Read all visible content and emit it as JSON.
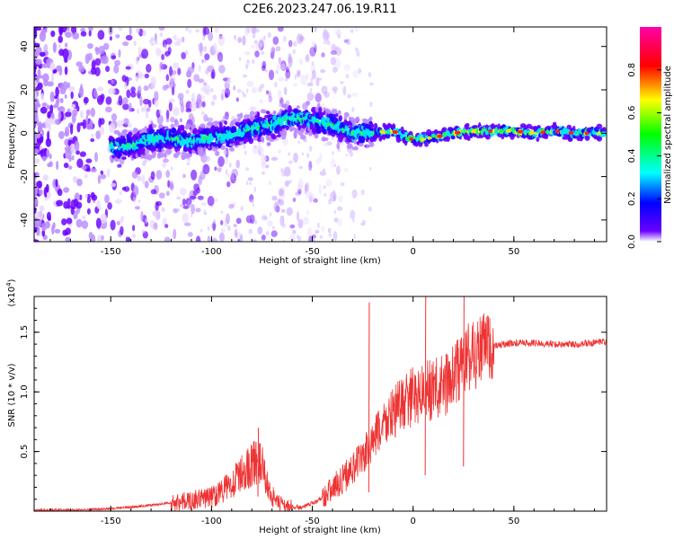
{
  "title": "C2E6.2023.247.06.19.R11",
  "chart_data": [
    {
      "type": "heatmap",
      "name": "spectrogram",
      "xlabel": "Height of straight line (km)",
      "ylabel": "Frequency (Hz)",
      "xlim": [
        -188,
        96
      ],
      "ylim": [
        -50,
        49
      ],
      "xticks": [
        -150,
        -100,
        -50,
        0,
        50
      ],
      "yticks": [
        -40,
        -20,
        0,
        20,
        40
      ],
      "colorbar": {
        "label": "Normalized spectral amplitude",
        "range": [
          0,
          1
        ],
        "ticks": [
          0.0,
          0.2,
          0.4,
          0.6,
          0.8
        ],
        "tick_labels": [
          "0.0",
          "0.2",
          "0.4",
          "0.6",
          "0.8"
        ],
        "colormap": [
          "#ffffff",
          "#6a00ff",
          "#0000ff",
          "#00ffff",
          "#00ff00",
          "#ffff00",
          "#ff0000",
          "#ff00aa"
        ]
      },
      "ridge": {
        "description_values": "frequency center (Hz) along height",
        "x": [
          -140,
          -130,
          -120,
          -110,
          -100,
          -90,
          -80,
          -70,
          -60,
          -50,
          -40,
          -30,
          -20,
          -10,
          0,
          10,
          20,
          30,
          40,
          50,
          60,
          70,
          80,
          90
        ],
        "y": [
          -6,
          -3,
          -2,
          -4,
          -2,
          -1,
          2,
          4,
          7,
          6,
          4,
          0,
          0,
          1,
          -3,
          -2,
          0,
          1,
          1,
          1,
          0,
          1,
          0,
          0
        ]
      }
    },
    {
      "type": "line",
      "name": "snr",
      "xlabel": "Height of straight line (km)",
      "ylabel": "SNR (10 * v/v)",
      "multiplier_label": "(x10",
      "multiplier_exp": "4",
      "multiplier_close": ")",
      "xlim": [
        -188,
        96
      ],
      "ylim": [
        0,
        1.8
      ],
      "xticks": [
        -150,
        -100,
        -50,
        0,
        50
      ],
      "yticks": [
        0.5,
        1.0,
        1.5
      ],
      "ytick_labels": [
        "0.5",
        "1.0",
        "1.5"
      ],
      "color": "#ee3333",
      "series": [
        {
          "name": "SNR",
          "x": [
            -188,
            -170,
            -150,
            -130,
            -120,
            -110,
            -100,
            -92,
            -86,
            -82,
            -78,
            -75,
            -72,
            -68,
            -62,
            -55,
            -48,
            -42,
            -35,
            -30,
            -25,
            -20,
            -15,
            -10,
            -5,
            0,
            5,
            10,
            15,
            20,
            25,
            30,
            35,
            40,
            45,
            50,
            60,
            70,
            80,
            90,
            96
          ],
          "values": [
            0.01,
            0.01,
            0.02,
            0.05,
            0.07,
            0.09,
            0.12,
            0.2,
            0.3,
            0.36,
            0.42,
            0.38,
            0.2,
            0.07,
            0.04,
            0.03,
            0.08,
            0.16,
            0.27,
            0.36,
            0.45,
            0.58,
            0.72,
            0.82,
            0.9,
            0.96,
            1.0,
            1.02,
            1.05,
            1.12,
            1.25,
            1.32,
            1.36,
            1.38,
            1.4,
            1.41,
            1.41,
            1.4,
            1.4,
            1.41,
            1.42
          ]
        }
      ],
      "spikes": [
        {
          "x": -22,
          "y": 1.75
        },
        {
          "x": 6,
          "y": 1.8
        },
        {
          "x": 25,
          "y": 1.8
        },
        {
          "x": -77,
          "y": 0.7
        }
      ]
    }
  ]
}
